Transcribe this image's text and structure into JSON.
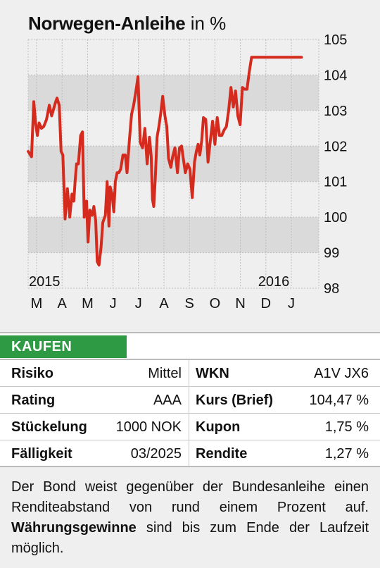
{
  "title": {
    "main": "Norwegen-Anleihe",
    "unit": "in %"
  },
  "chart_data": {
    "type": "line",
    "ylim": [
      98,
      105
    ],
    "yticks": [
      "98",
      "99",
      "100",
      "101",
      "102",
      "103",
      "104",
      "105"
    ],
    "months": [
      "M",
      "A",
      "M",
      "J",
      "J",
      "A",
      "S",
      "O",
      "N",
      "D",
      "J"
    ],
    "year_labels": [
      {
        "text": "2015",
        "month_index": 0
      },
      {
        "text": "2016",
        "month_index": 9
      }
    ],
    "line_color": "#d42b1e",
    "band_color": "#dadada",
    "series": [
      {
        "x": [
          0,
          0.13,
          0.22,
          0.29,
          0.36,
          0.43,
          0.52,
          0.61,
          0.72,
          0.83,
          0.92,
          1.0,
          1.06,
          1.13,
          1.22,
          1.29,
          1.36,
          1.45,
          1.54,
          1.63,
          1.72,
          1.79,
          1.84,
          1.9,
          1.97,
          2.06,
          2.13,
          2.2,
          2.24,
          2.29,
          2.35,
          2.42,
          2.51,
          2.58,
          2.65,
          2.71,
          2.78,
          2.86,
          2.93,
          3.03,
          3.1,
          3.17,
          3.22,
          3.29,
          3.36,
          3.42,
          3.49,
          3.56,
          3.63,
          3.72,
          3.81,
          3.88,
          3.97,
          4.06,
          4.14,
          4.22,
          4.31,
          4.4,
          4.49,
          4.58,
          4.67,
          4.76,
          4.83,
          4.88,
          4.93,
          4.99,
          5.06,
          5.13,
          5.2,
          5.28,
          5.37,
          5.44,
          5.51,
          5.6,
          5.67,
          5.76,
          5.86,
          5.94,
          6.02,
          6.08,
          6.17,
          6.26,
          6.35,
          6.44,
          6.53,
          6.6,
          6.67,
          6.74,
          6.81,
          6.88,
          6.97,
          7.06,
          7.15,
          7.24,
          7.33,
          7.42,
          7.51,
          7.6,
          7.69,
          7.78,
          7.87,
          7.96,
          8.05,
          8.14,
          8.23,
          8.32,
          8.41,
          8.5,
          8.59,
          8.68,
          8.77,
          8.86,
          8.95,
          9.04,
          9.13,
          9.22,
          9.31,
          9.4,
          9.49,
          9.58,
          9.67,
          9.76,
          9.85,
          9.94,
          10.03,
          10.12,
          10.21,
          10.3,
          10.39,
          10.48,
          10.57,
          10.66,
          10.73
        ],
        "y": [
          101.85,
          101.7,
          103.25,
          102.65,
          102.3,
          102.65,
          102.5,
          102.55,
          102.75,
          103.15,
          102.85,
          103.05,
          103.2,
          103.35,
          103.15,
          101.85,
          101.75,
          99.95,
          100.8,
          100,
          100.65,
          100.45,
          101.0,
          101.5,
          101.5,
          102.3,
          102.4,
          100.0,
          100.2,
          100.45,
          99.3,
          100.2,
          100.05,
          100.3,
          99.9,
          98.75,
          98.65,
          99.15,
          99.85,
          100.05,
          101.0,
          99.75,
          100.85,
          100.65,
          100.15,
          101.0,
          101.25,
          101.25,
          101.35,
          101.75,
          101.75,
          101.25,
          102.15,
          102.9,
          103.15,
          103.5,
          103.95,
          102.1,
          101.95,
          102.5,
          101.5,
          102.25,
          101.7,
          100.5,
          100.3,
          101.1,
          102.25,
          102.55,
          102.9,
          103.4,
          102.85,
          102.55,
          101.65,
          101.4,
          101.7,
          101.95,
          101.25,
          101.95,
          102.0,
          101.7,
          101.25,
          101.5,
          101.35,
          100.55,
          101.55,
          101.85,
          102.05,
          101.75,
          102.15,
          102.8,
          102.75,
          101.55,
          102.15,
          102.7,
          102.05,
          102.8,
          102.3,
          102.3,
          102.45,
          102.55,
          103.0,
          103.65,
          103.1,
          103.55,
          102.85,
          102.6,
          103.65,
          103.6,
          103.6,
          104.1,
          104.5,
          104.5,
          104.5,
          104.5,
          104.5,
          104.5,
          104.5,
          104.5,
          104.5,
          104.5,
          104.5,
          104.5,
          104.5,
          104.5,
          104.5,
          104.5,
          104.5,
          104.5,
          104.5,
          104.5,
          104.5,
          104.5,
          104.5
        ]
      }
    ]
  },
  "kaufen": "KAUFEN",
  "facts": [
    {
      "label_l": "Risiko",
      "value_l": "Mittel",
      "label_r": "WKN",
      "value_r": "A1V JX6"
    },
    {
      "label_l": "Rating",
      "value_l": "AAA",
      "label_r": "Kurs (Brief)",
      "value_r": "104,47 %"
    },
    {
      "label_l": "Stückelung",
      "value_l": "1000 NOK",
      "label_r": "Kupon",
      "value_r": "1,75 %"
    },
    {
      "label_l": "Fälligkeit",
      "value_l": "03/2025",
      "label_r": "Rendite",
      "value_r": "1,27 %"
    }
  ],
  "description": {
    "part1": "Der Bond weist gegenüber der Bundesanleihe einen Renditeabstand von rund einem Prozent auf. ",
    "bold": "Währungsgewinne",
    "part2": " sind bis zum Ende der Laufzeit möglich."
  }
}
